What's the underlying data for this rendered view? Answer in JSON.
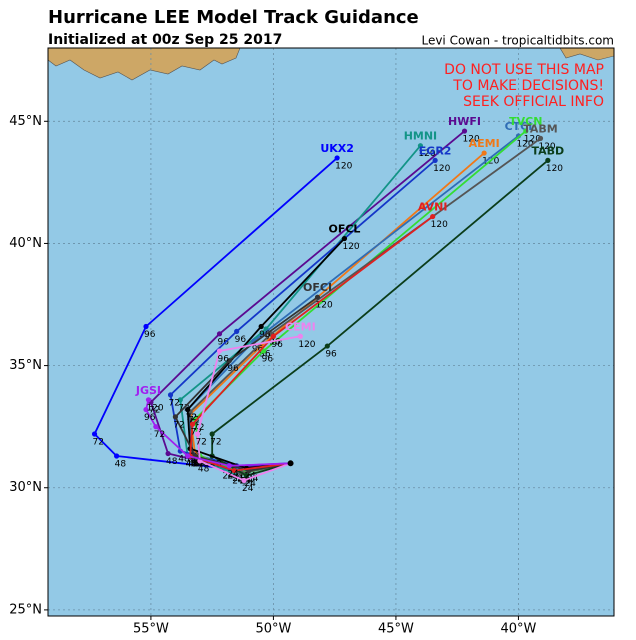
{
  "chart_data": {
    "type": "track_map",
    "title": "Hurricane LEE Model Track Guidance",
    "subtitle": "Initialized at 00z Sep 25 2017",
    "credit": "Levi Cowan - tropicaltidbits.com",
    "warning": [
      "DO NOT USE THIS MAP",
      "TO MAKE DECISIONS!",
      "SEEK OFFICIAL INFO"
    ],
    "xlim": [
      -59.2,
      -36.1
    ],
    "ylim": [
      24.75,
      48
    ],
    "xticks": [
      {
        "value": -55,
        "label": "55°W"
      },
      {
        "value": -50,
        "label": "50°W"
      },
      {
        "value": -45,
        "label": "45°W"
      },
      {
        "value": -40,
        "label": "40°W"
      }
    ],
    "yticks": [
      {
        "value": 25,
        "label": "25°N"
      },
      {
        "value": 30,
        "label": "30°N"
      },
      {
        "value": 35,
        "label": "35°N"
      },
      {
        "value": 40,
        "label": "40°N"
      },
      {
        "value": 45,
        "label": "45°N"
      }
    ],
    "grid": true,
    "initial_position": {
      "lon": -49.3,
      "lat": 31.0
    },
    "forecast_hours": [
      24,
      48,
      72,
      96,
      120
    ],
    "tracks": [
      {
        "name": "UKX2",
        "color": "#0000ff",
        "lon": [
          -52,
          -56.4,
          -57.3,
          -55.2,
          -47.4
        ],
        "lat": [
          30.8,
          31.3,
          32.2,
          36.6,
          43.5
        ]
      },
      {
        "name": "HWFI",
        "color": "#5b0a91",
        "lon": [
          -51.8,
          -54.3,
          -55,
          -52.2,
          -42.2
        ],
        "lat": [
          30.8,
          31.4,
          33.5,
          36.3,
          44.6
        ]
      },
      {
        "name": "HMNI",
        "color": "#139487",
        "lon": [
          -51.6,
          -53.5,
          -53.8,
          -50.3,
          -44
        ],
        "lat": [
          30.6,
          31.3,
          33.6,
          36.5,
          44
        ]
      },
      {
        "name": "EGR2",
        "color": "#1436c8",
        "lon": [
          -51.5,
          -53.8,
          -54.2,
          -51.5,
          -43.4
        ],
        "lat": [
          30.9,
          31.5,
          33.8,
          36.4,
          43.4
        ]
      },
      {
        "name": "AEMI",
        "color": "#f07818",
        "lon": [
          -51.3,
          -53.2,
          -53.4,
          -50.5,
          -41.4
        ],
        "lat": [
          30.6,
          31.4,
          33,
          35.8,
          43.7
        ]
      },
      {
        "name": "CTCI",
        "color": "#2f6db5",
        "lon": [
          -51.4,
          -53.3,
          -53.5,
          -50.8,
          -40
        ],
        "lat": [
          30.7,
          31.4,
          33.2,
          36,
          44.4
        ]
      },
      {
        "name": "TVCN",
        "color": "#33dd33",
        "lon": [
          -51.2,
          -53,
          -53.2,
          -50.4,
          -39.7
        ],
        "lat": [
          30.6,
          31.3,
          32.8,
          35.6,
          44.6
        ]
      },
      {
        "name": "TABM",
        "color": "#555555",
        "lon": [
          -51.3,
          -53.3,
          -53.4,
          -50.1,
          -39.1
        ],
        "lat": [
          30.6,
          31.3,
          33.1,
          36.3,
          44.3
        ]
      },
      {
        "name": "TABD",
        "color": "#0b3d1a",
        "lon": [
          -51.1,
          -52.5,
          -52.5,
          -47.8,
          -38.8
        ],
        "lat": [
          30.5,
          31.3,
          32.2,
          35.8,
          43.4
        ]
      },
      {
        "name": "OFCL",
        "color": "#000000",
        "lon": [
          -51.1,
          -53.4,
          -53.5,
          -50.5,
          -47.1
        ],
        "lat": [
          30.8,
          31.6,
          33.2,
          36.6,
          40.2
        ]
      },
      {
        "name": "OFCI",
        "color": "#333333",
        "lon": [
          -51,
          -53.2,
          -54,
          -51.8,
          -48.2
        ],
        "lat": [
          30.7,
          31.3,
          32.9,
          35.2,
          37.8
        ]
      },
      {
        "name": "AVNI",
        "color": "#e02020",
        "lon": [
          -51.6,
          -53.4,
          -53.3,
          -50,
          -43.5
        ],
        "lat": [
          30.7,
          31.3,
          32.6,
          36.2,
          41.1
        ]
      },
      {
        "name": "CEMI",
        "color": "#ee82ee",
        "lon": [
          -51.2,
          -53,
          -53.1,
          -52.2,
          -48.9
        ],
        "lat": [
          30.3,
          31.1,
          32.2,
          35.6,
          36.2
        ]
      },
      {
        "name": "JGSI",
        "color": "#a020f0",
        "lon": [
          -51.8,
          -53.5,
          -54.8,
          -55.2,
          -55.1
        ],
        "lat": [
          30.9,
          31.3,
          32.5,
          33.2,
          33.6
        ]
      }
    ]
  }
}
